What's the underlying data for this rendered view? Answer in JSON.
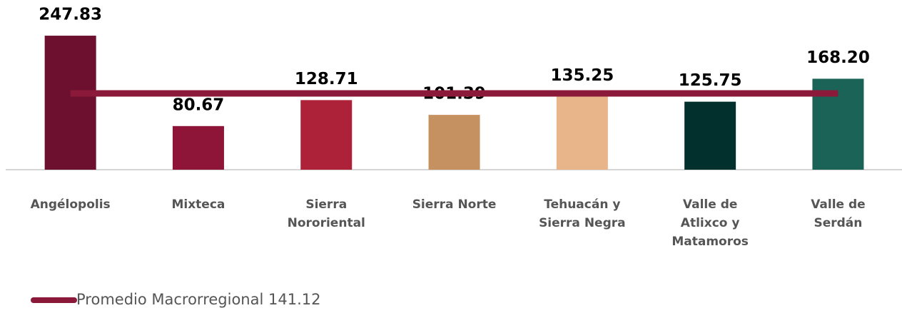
{
  "chart_data": {
    "type": "bar",
    "categories": [
      "Angélopolis",
      "Mixteca",
      "Sierra Nororiental",
      "Sierra Norte",
      "Tehuacán y Sierra Negra",
      "Valle de Atlixco y Matamoros",
      "Valle de Serdán"
    ],
    "values": [
      247.83,
      80.67,
      128.71,
      101.39,
      135.25,
      125.75,
      168.2
    ],
    "value_labels": [
      "247.83",
      "80.67",
      "128.71",
      "101.39",
      "135.25",
      "125.75",
      "168.20"
    ],
    "colors": [
      "#6d0f2e",
      "#8e1538",
      "#ad2239",
      "#c69160",
      "#e8b58a",
      "#02302c",
      "#1b6257"
    ],
    "ylim": [
      0,
      250
    ],
    "average": {
      "name": "Promedio Macrorregional",
      "value": 141.12,
      "color": "#8b1a3a"
    }
  }
}
